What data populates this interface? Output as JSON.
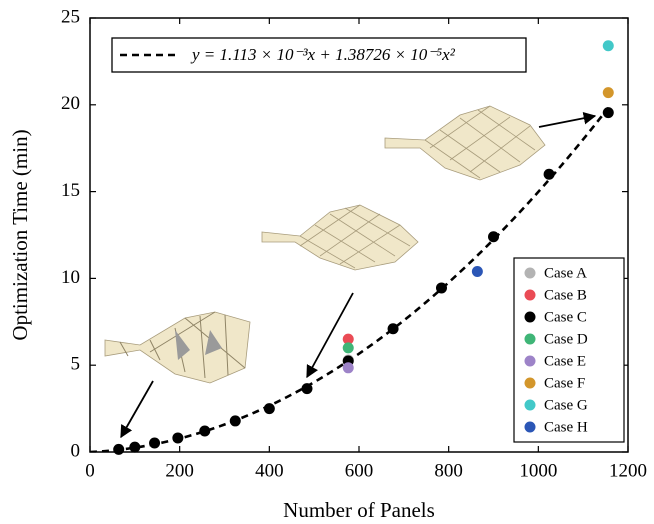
{
  "chart_data": {
    "type": "scatter",
    "xlabel": "Number of Panels",
    "ylabel": "Optimization Time (min)",
    "xlim": [
      0,
      1200
    ],
    "xticks": [
      0,
      200,
      400,
      600,
      800,
      1000,
      1200
    ],
    "ylim": [
      0,
      25
    ],
    "yticks": [
      0,
      5,
      10,
      15,
      20,
      25
    ],
    "legend": "lower right",
    "fit": {
      "label": "y = 1.113 × 10⁻³x + 1.38726 × 10⁻⁵x²",
      "coefficients": [
        0.001113,
        1.38726e-05
      ],
      "color": "#000000"
    },
    "series": [
      {
        "name": "Case A",
        "color": "#b3b3b3",
        "x": [
          576
        ],
        "values": [
          5.3
        ]
      },
      {
        "name": "Case B",
        "color": "#ea4b55",
        "x": [
          576
        ],
        "values": [
          6.5
        ]
      },
      {
        "name": "Case C",
        "color": "#000000",
        "x": [
          64,
          100,
          144,
          196,
          256,
          324,
          400,
          484,
          576,
          676,
          784,
          900,
          1024,
          1156
        ],
        "values": [
          0.15,
          0.28,
          0.52,
          0.81,
          1.21,
          1.79,
          2.5,
          3.65,
          5.24,
          7.1,
          9.45,
          12.4,
          16.0,
          19.55
        ]
      },
      {
        "name": "Case D",
        "color": "#3fb577",
        "x": [
          576
        ],
        "values": [
          6.0
        ]
      },
      {
        "name": "Case E",
        "color": "#9d83c8",
        "x": [
          576
        ],
        "values": [
          4.85
        ]
      },
      {
        "name": "Case F",
        "color": "#d3962b",
        "x": [
          1156
        ],
        "values": [
          20.7
        ]
      },
      {
        "name": "Case G",
        "color": "#42c8c8",
        "x": [
          1156
        ],
        "values": [
          23.4
        ]
      },
      {
        "name": "Case H",
        "color": "#2b56b6",
        "x": [
          864
        ],
        "values": [
          10.4
        ]
      }
    ]
  }
}
